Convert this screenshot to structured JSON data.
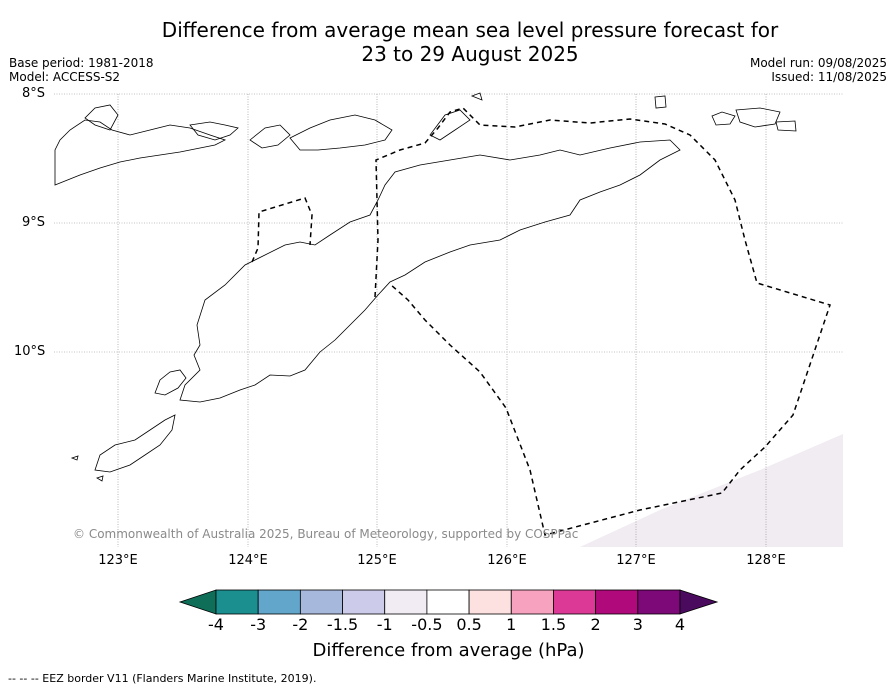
{
  "title_line1": "Difference from average mean sea level pressure forecast for",
  "title_line2": "23 to 29 August 2025",
  "base_period": "Base period: 1981-2018",
  "model": "Model: ACCESS-S2",
  "model_run": "Model run: 09/08/2025",
  "issued": "Issued: 11/08/2025",
  "lat_labels": [
    "8°S",
    "9°S",
    "10°S"
  ],
  "lon_labels": [
    "123°E",
    "124°E",
    "125°E",
    "126°E",
    "127°E",
    "128°E"
  ],
  "copyright": "© Commonwealth of Australia 2025, Bureau of Meteorology, supported by COSPPac",
  "colorbar": {
    "ticks": [
      "-4",
      "-3",
      "-2",
      "-1.5",
      "-1",
      "-0.5",
      "0.5",
      "1",
      "1.5",
      "2",
      "3",
      "4"
    ],
    "colors": [
      "#1b8f8f",
      "#62a6cc",
      "#a6b8db",
      "#ccccea",
      "#f1ecf4",
      "#ffffff",
      "#fde0e0",
      "#f7a3bf",
      "#dc3996",
      "#b0097b",
      "#7d0877"
    ],
    "under_color": "#0f6e58",
    "over_color": "#4a0a5e",
    "label": "Difference from average (hPa)"
  },
  "footer": "--  --  -- EEZ border V11 (Flanders Marine Institute, 2019).",
  "map_fill_color": "#f1ebf2"
}
